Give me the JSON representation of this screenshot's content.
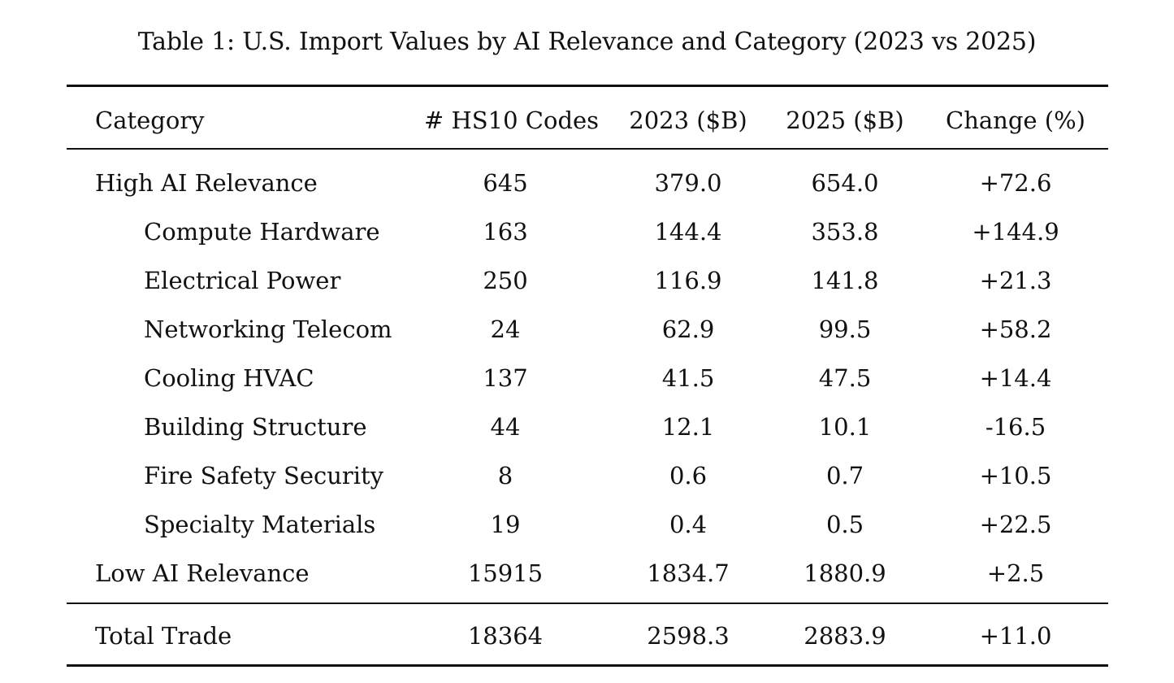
{
  "caption": "Table 1: U.S. Import Values by AI Relevance and Category (2023 vs 2025)",
  "columns": {
    "category": "Category",
    "codes": "# HS10 Codes",
    "y2023": "2023 ($B)",
    "y2025": "2025 ($B)",
    "change": "Change (%)"
  },
  "rows": [
    {
      "category": "High AI Relevance",
      "codes": "645",
      "y2023": "379.0",
      "y2025": "654.0",
      "change": "+72.6"
    },
    {
      "category": "Compute Hardware",
      "codes": "163",
      "y2023": "144.4",
      "y2025": "353.8",
      "change": "+144.9"
    },
    {
      "category": "Electrical Power",
      "codes": "250",
      "y2023": "116.9",
      "y2025": "141.8",
      "change": "+21.3"
    },
    {
      "category": "Networking Telecom",
      "codes": "24",
      "y2023": "62.9",
      "y2025": "99.5",
      "change": "+58.2"
    },
    {
      "category": "Cooling HVAC",
      "codes": "137",
      "y2023": "41.5",
      "y2025": "47.5",
      "change": "+14.4"
    },
    {
      "category": "Building Structure",
      "codes": "44",
      "y2023": "12.1",
      "y2025": "10.1",
      "change": "-16.5"
    },
    {
      "category": "Fire Safety Security",
      "codes": "8",
      "y2023": "0.6",
      "y2025": "0.7",
      "change": "+10.5"
    },
    {
      "category": "Specialty Materials",
      "codes": "19",
      "y2023": "0.4",
      "y2025": "0.5",
      "change": "+22.5"
    },
    {
      "category": "Low AI Relevance",
      "codes": "15915",
      "y2023": "1834.7",
      "y2025": "1880.9",
      "change": "+2.5"
    }
  ],
  "total": {
    "category": "Total Trade",
    "codes": "18364",
    "y2023": "2598.3",
    "y2025": "2883.9",
    "change": "+11.0"
  }
}
